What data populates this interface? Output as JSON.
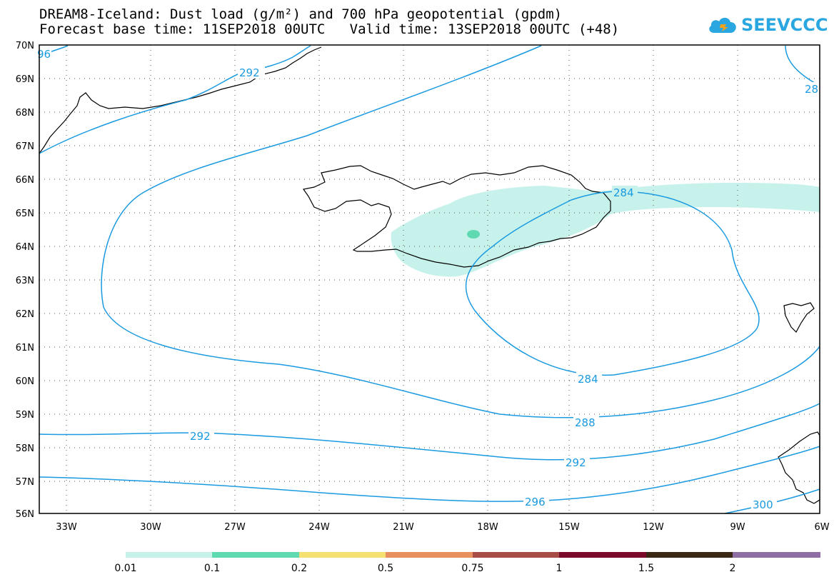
{
  "header": {
    "title_line1": "DREAM8-Iceland: Dust load (g/m²) and 700 hPa geopotential (gpdm)",
    "title_line2": "Forecast base time: 11SEP2018 00UTC   Valid time: 13SEP2018 00UTC (+48)"
  },
  "logo": {
    "text": "SEEVCCC",
    "icon": "cloud-icon"
  },
  "map": {
    "lat_labels": [
      "70N",
      "69N",
      "68N",
      "67N",
      "66N",
      "65N",
      "64N",
      "63N",
      "62N",
      "61N",
      "60N",
      "59N",
      "58N",
      "57N",
      "56N"
    ],
    "lon_labels": [
      "33W",
      "30W",
      "27W",
      "24W",
      "21W",
      "18W",
      "15W",
      "12W",
      "9W",
      "6W"
    ],
    "contour_labels": [
      "96",
      "292",
      "28",
      "284",
      "284",
      "288",
      "292",
      "292",
      "296",
      "300"
    ],
    "contour_color": "#1a9ae0",
    "dust_color_low": "#c7f2ec",
    "dust_color_mid": "#5ed9b0"
  },
  "colorbar": {
    "labels": [
      "0.01",
      "0.1",
      "0.2",
      "0.5",
      "0.75",
      "1",
      "1.5",
      "2"
    ],
    "colors": [
      "#c7f2ec",
      "#5ed9b0",
      "#f5e071",
      "#e88f60",
      "#a84c48",
      "#7a0a2a",
      "#3a2814",
      "#8e6ea5"
    ]
  }
}
